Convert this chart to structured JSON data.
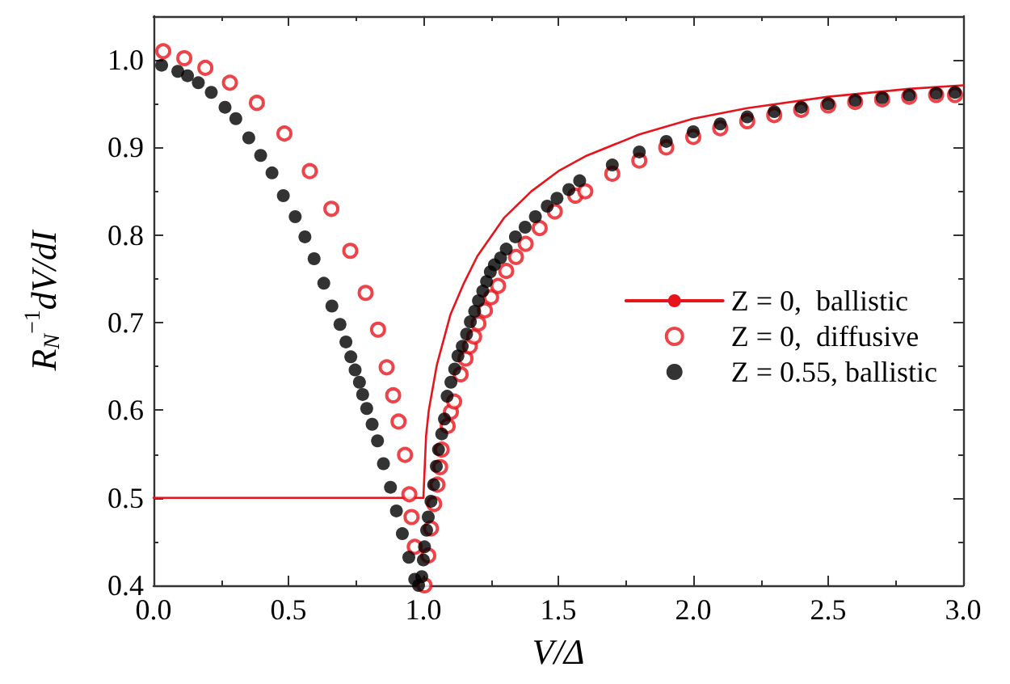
{
  "chart_data": {
    "type": "scatter",
    "xlabel": "V/Δ",
    "ylabel": "R$_{N}$$^{−1}$dV/dI",
    "xlim": [
      0,
      3.0
    ],
    "ylim": [
      0.4,
      1.05
    ],
    "xticks": [
      {
        "value": 0,
        "label": "0.0"
      },
      0.5,
      {
        "value": 1,
        "label": "1.0"
      },
      1.5,
      {
        "value": 2,
        "label": "2.0"
      },
      2.5,
      {
        "value": 3,
        "label": "3.0"
      }
    ],
    "yticks": [
      0.4,
      0.5,
      0.6,
      0.7,
      0.8,
      0.9,
      {
        "value": 1,
        "label": "1.0"
      }
    ],
    "grid": false,
    "legend": "right",
    "series": [
      {
        "name": "Z = 0,  ballistic",
        "type": "line",
        "marker": "none",
        "line_style": "solid",
        "color": "#e8141c",
        "x": [
          0,
          1.0,
          1.01,
          1.02,
          1.05,
          1.1,
          1.15,
          1.2,
          1.3,
          1.4,
          1.5,
          1.6,
          1.8,
          2.0,
          2.2,
          2.5,
          2.8,
          3.0
        ],
        "values": [
          0.5,
          0.5,
          0.571,
          0.6,
          0.652,
          0.709,
          0.745,
          0.776,
          0.82,
          0.85,
          0.873,
          0.89,
          0.915,
          0.933,
          0.945,
          0.958,
          0.967,
          0.971
        ]
      },
      {
        "name": "Z = 0,  diffusive",
        "marker": "open-circle",
        "color": "#e8141c",
        "x": [
          0.036,
          0.114,
          0.192,
          0.283,
          0.383,
          0.485,
          0.579,
          0.659,
          0.729,
          0.786,
          0.832,
          0.864,
          0.888,
          0.908,
          0.932,
          0.948,
          0.956,
          0.968,
          1.004,
          1.018,
          1.028,
          1.04,
          1.052,
          1.062,
          1.068,
          1.09,
          1.102,
          1.114,
          1.138,
          1.156,
          1.172,
          1.188,
          1.204,
          1.228,
          1.251,
          1.277,
          1.307,
          1.343,
          1.379,
          1.431,
          1.487,
          1.563,
          1.6,
          1.7,
          1.8,
          1.9,
          2.0,
          2.1,
          2.2,
          2.3,
          2.4,
          2.5,
          2.6,
          2.7,
          2.8,
          2.9,
          2.97
        ],
        "values": [
          1.01,
          1.002,
          0.991,
          0.974,
          0.951,
          0.916,
          0.873,
          0.83,
          0.782,
          0.734,
          0.692,
          0.649,
          0.617,
          0.587,
          0.549,
          0.504,
          0.478,
          0.444,
          0.4,
          0.434,
          0.465,
          0.493,
          0.515,
          0.535,
          0.555,
          0.582,
          0.598,
          0.61,
          0.641,
          0.659,
          0.673,
          0.684,
          0.699,
          0.714,
          0.729,
          0.742,
          0.759,
          0.775,
          0.79,
          0.808,
          0.827,
          0.845,
          0.85,
          0.87,
          0.885,
          0.9,
          0.912,
          0.922,
          0.93,
          0.937,
          0.943,
          0.948,
          0.952,
          0.955,
          0.958,
          0.96,
          0.96
        ]
      },
      {
        "name": "Z = 0.55, ballistic",
        "marker": "circle",
        "color": "#000000",
        "x": [
          0.03,
          0.09,
          0.126,
          0.166,
          0.214,
          0.265,
          0.305,
          0.353,
          0.397,
          0.439,
          0.481,
          0.525,
          0.561,
          0.595,
          0.631,
          0.661,
          0.691,
          0.713,
          0.731,
          0.747,
          0.763,
          0.775,
          0.79,
          0.81,
          0.83,
          0.852,
          0.878,
          0.9,
          0.922,
          0.946,
          0.968,
          0.982,
          0.994,
          1.0,
          1.004,
          1.012,
          1.018,
          1.028,
          1.038,
          1.048,
          1.056,
          1.068,
          1.078,
          1.088,
          1.102,
          1.116,
          1.128,
          1.144,
          1.16,
          1.174,
          1.19,
          1.204,
          1.22,
          1.234,
          1.248,
          1.263,
          1.286,
          1.307,
          1.341,
          1.377,
          1.415,
          1.459,
          1.495,
          1.539,
          1.579,
          1.7,
          1.8,
          1.9,
          2.0,
          2.1,
          2.2,
          2.3,
          2.4,
          2.5,
          2.6,
          2.7,
          2.8,
          2.9,
          2.97
        ],
        "values": [
          0.994,
          0.987,
          0.982,
          0.974,
          0.963,
          0.946,
          0.933,
          0.911,
          0.891,
          0.871,
          0.845,
          0.821,
          0.798,
          0.773,
          0.745,
          0.719,
          0.698,
          0.678,
          0.661,
          0.646,
          0.632,
          0.618,
          0.602,
          0.584,
          0.565,
          0.539,
          0.512,
          0.485,
          0.459,
          0.432,
          0.407,
          0.4,
          0.41,
          0.429,
          0.444,
          0.463,
          0.478,
          0.496,
          0.515,
          0.536,
          0.555,
          0.573,
          0.59,
          0.616,
          0.632,
          0.647,
          0.662,
          0.673,
          0.687,
          0.701,
          0.713,
          0.725,
          0.736,
          0.747,
          0.758,
          0.766,
          0.774,
          0.784,
          0.798,
          0.809,
          0.821,
          0.833,
          0.842,
          0.852,
          0.862,
          0.88,
          0.895,
          0.907,
          0.918,
          0.927,
          0.935,
          0.941,
          0.946,
          0.95,
          0.954,
          0.957,
          0.96,
          0.962,
          0.963
        ]
      }
    ]
  }
}
